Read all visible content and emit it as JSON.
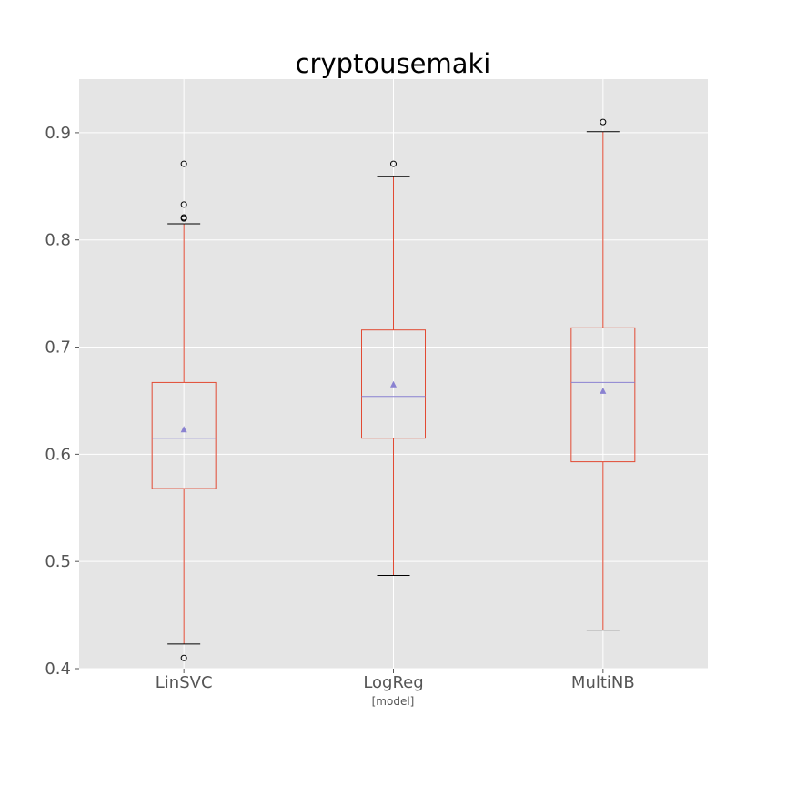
{
  "chart_data": {
    "type": "box",
    "title": "cryptousemaki",
    "xlabel": "[model]",
    "ylabel": "",
    "ylim": [
      0.4,
      0.95
    ],
    "yticks": [
      0.4,
      0.5,
      0.6,
      0.7,
      0.8,
      0.9
    ],
    "ytick_labels": [
      "0.4",
      "0.5",
      "0.6",
      "0.7",
      "0.8",
      "0.9"
    ],
    "categories": [
      "LinSVC",
      "LogReg",
      "MultiNB"
    ],
    "boxes": [
      {
        "label": "LinSVC",
        "whisker_low": 0.423,
        "q1": 0.568,
        "median": 0.615,
        "q3": 0.667,
        "whisker_high": 0.815,
        "mean": 0.623,
        "outliers": [
          0.871,
          0.833,
          0.821,
          0.82,
          0.41
        ]
      },
      {
        "label": "LogReg",
        "whisker_low": 0.487,
        "q1": 0.615,
        "median": 0.654,
        "q3": 0.716,
        "whisker_high": 0.859,
        "mean": 0.665,
        "outliers": [
          0.871
        ]
      },
      {
        "label": "MultiNB",
        "whisker_low": 0.436,
        "q1": 0.593,
        "median": 0.667,
        "q3": 0.718,
        "whisker_high": 0.901,
        "mean": 0.659,
        "outliers": [
          0.91
        ]
      }
    ],
    "grid": true,
    "colors": {
      "background": "#e5e5e5",
      "grid": "#ffffff",
      "box": "#e24a33",
      "median": "#8a82d1",
      "mean_marker": "#8a82d1",
      "caps": "#000000",
      "outlier": "#000000"
    }
  }
}
